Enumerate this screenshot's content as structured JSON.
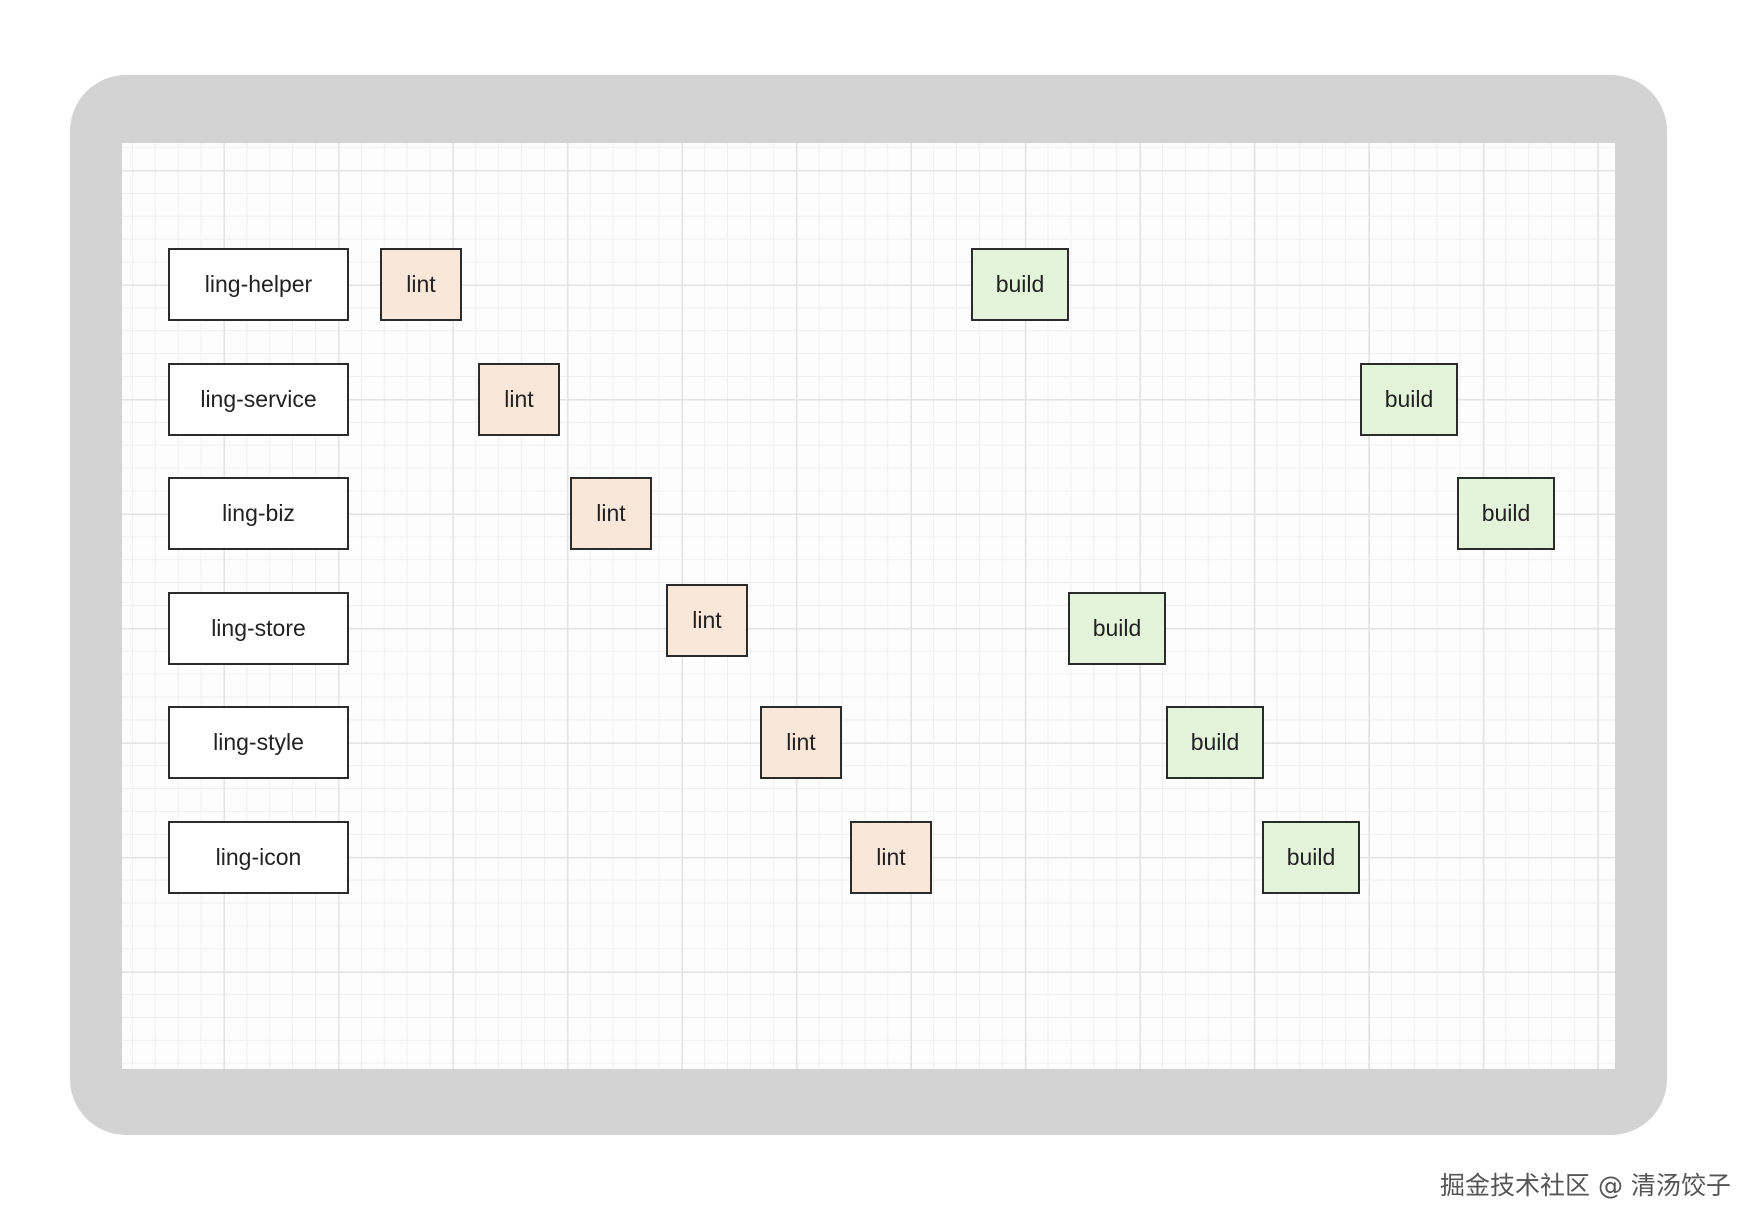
{
  "colors": {
    "lint_fill": "#f9e8da",
    "build_fill": "#e4f4da",
    "package_fill": "#ffffff",
    "border": "#2b2b2b",
    "frame": "#d3d3d3"
  },
  "packages": [
    {
      "name": "ling-helper",
      "lint": "lint",
      "build": "build"
    },
    {
      "name": "ling-service",
      "lint": "lint",
      "build": "build"
    },
    {
      "name": "ling-biz",
      "lint": "lint",
      "build": "build"
    },
    {
      "name": "ling-store",
      "lint": "lint",
      "build": "build"
    },
    {
      "name": "ling-style",
      "lint": "lint",
      "build": "build"
    },
    {
      "name": "ling-icon",
      "lint": "lint",
      "build": "build"
    }
  ],
  "watermark": "掘金技术社区 @ 清汤饺子"
}
